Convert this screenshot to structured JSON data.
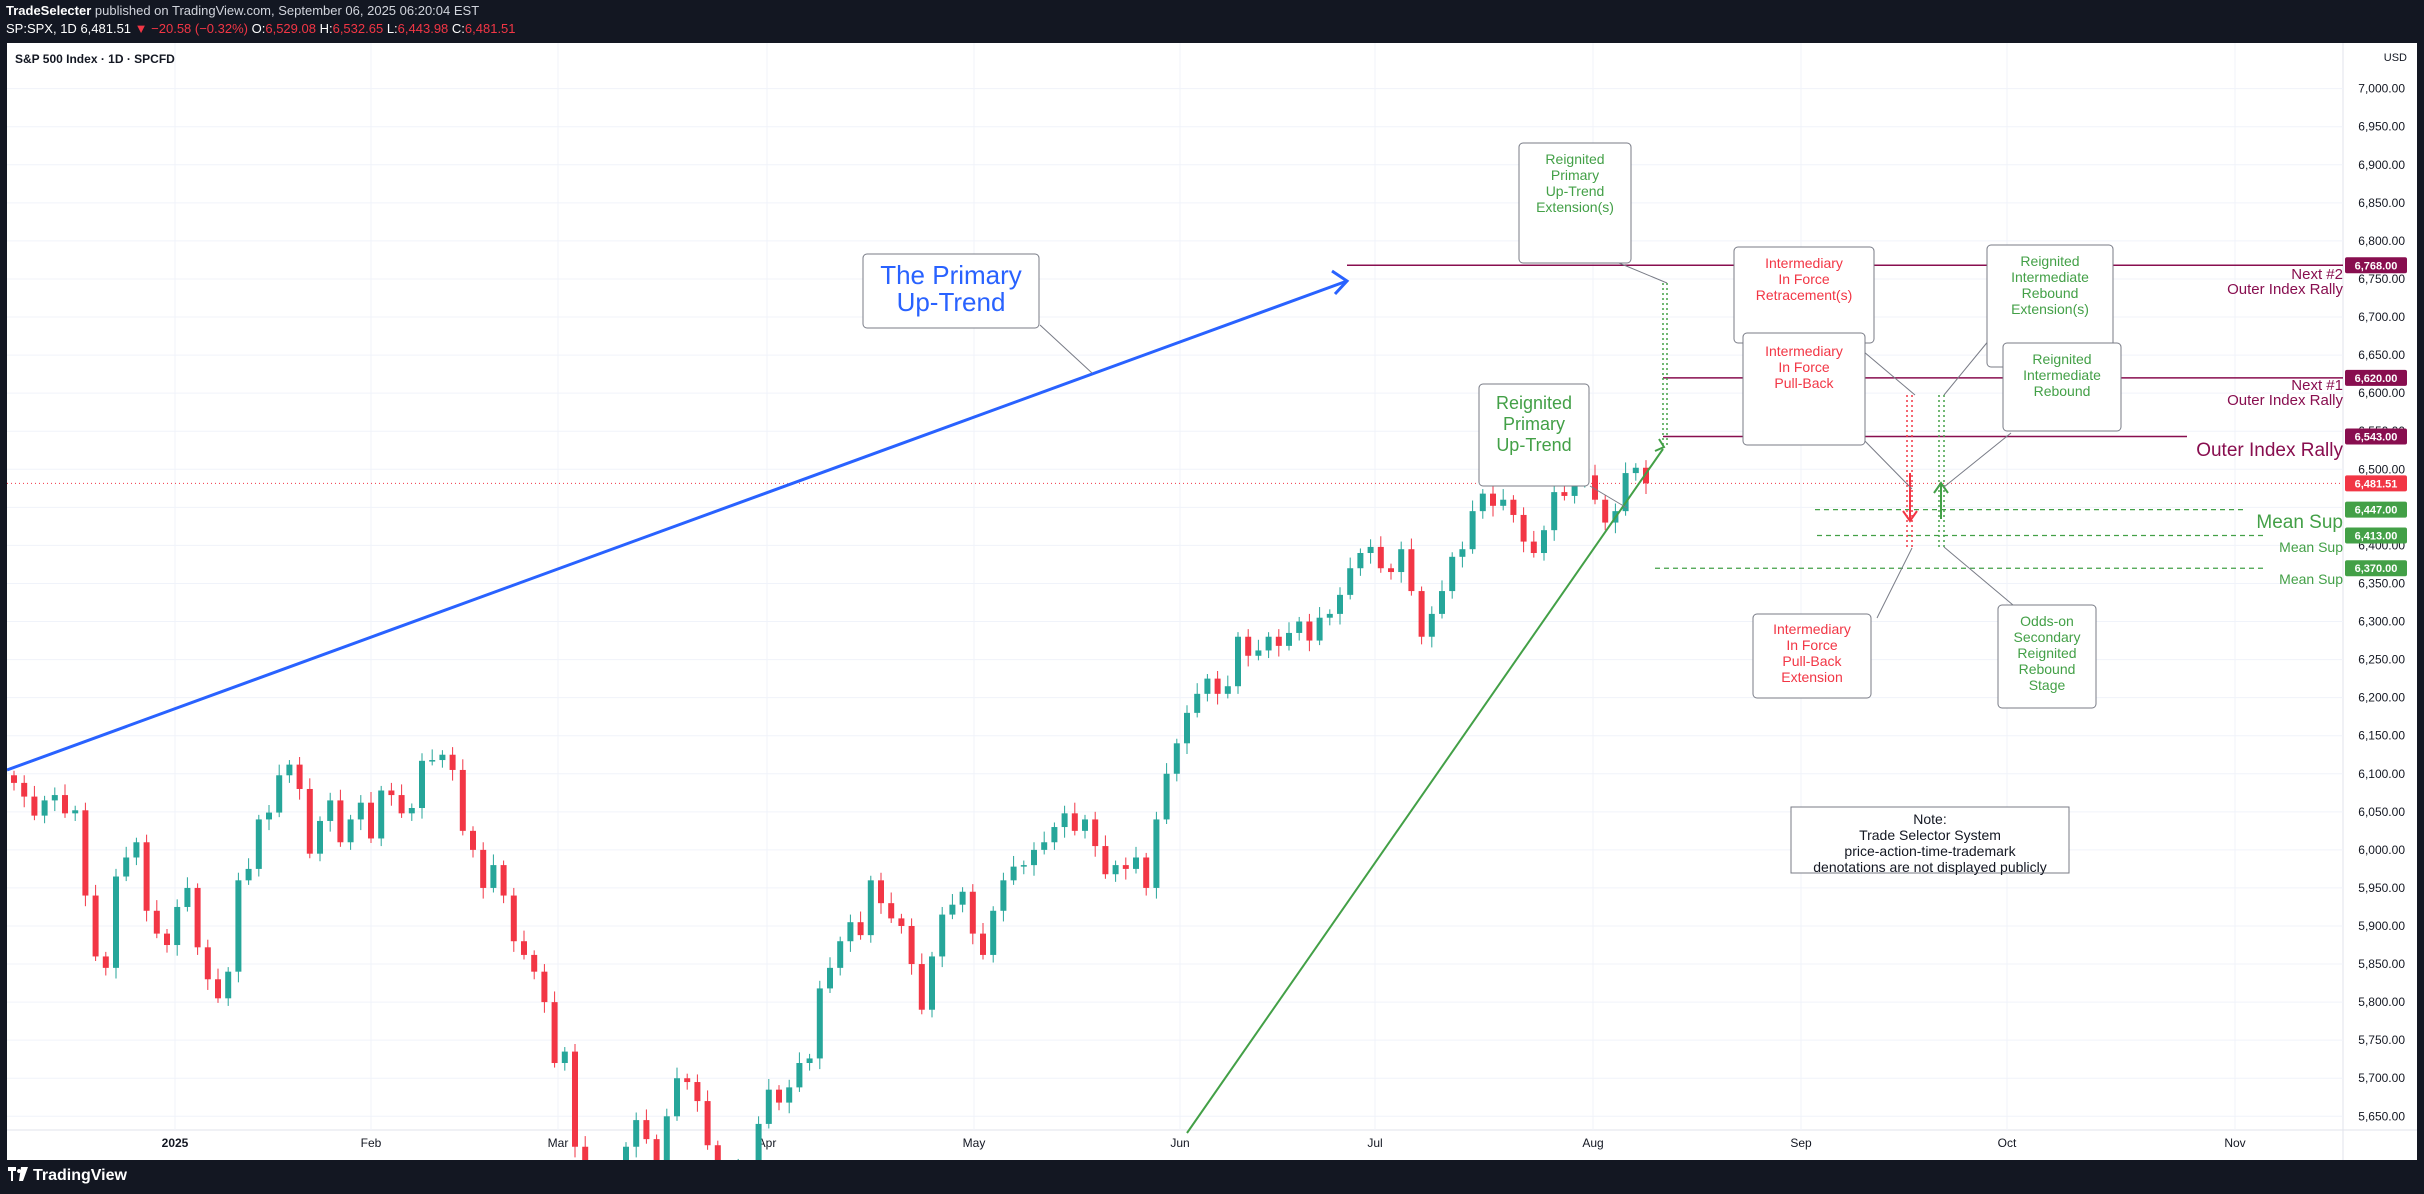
{
  "header": {
    "publisher": "TradeSelecter",
    "published_text": "published on TradingView.com, September 06, 2025 06:20:04 EST",
    "symbol": "SP:SPX, 1D",
    "last": "6,481.51",
    "change": "▼ −20.58 (−0.32%)",
    "o_label": "O:",
    "o": "6,529.08",
    "h_label": "H:",
    "h": "6,532.65",
    "l_label": "L:",
    "l": "6,443.98",
    "c_label": "C:",
    "c": "6,481.51"
  },
  "chart": {
    "title": "S&P 500 Index · 1D · SPCFD",
    "currency": "USD",
    "colors": {
      "up": "#26a69a",
      "down": "#f23645",
      "primary_trend": "#2962ff",
      "green": "#43a047",
      "maroon": "#880e4f",
      "red": "#f23645"
    }
  },
  "chart_data": {
    "type": "candlestick",
    "title": "S&P 500 Index · 1D · SPCFD",
    "x_labels": [
      "2025",
      "Feb",
      "Mar",
      "Apr",
      "May",
      "Jun",
      "Jul",
      "Aug",
      "Sep",
      "Oct",
      "Nov"
    ],
    "y_ticks": [
      "7,000.00",
      "6,950.00",
      "6,900.00",
      "6,850.00",
      "6,800.00",
      "6,750.00",
      "6,700.00",
      "6,650.00",
      "6,600.00",
      "6,550.00",
      "6,500.00",
      "6,450.00",
      "6,400.00",
      "6,350.00",
      "6,300.00",
      "6,250.00",
      "6,200.00",
      "6,150.00",
      "6,100.00",
      "6,050.00",
      "6,000.00",
      "5,950.00",
      "5,900.00",
      "5,850.00",
      "5,800.00",
      "5,750.00",
      "5,700.00",
      "5,650.00"
    ],
    "y_range": [
      5632,
      7060
    ],
    "closes": [
      6088,
      6070,
      6045,
      6065,
      6072,
      6048,
      6052,
      5940,
      5860,
      5845,
      5965,
      5990,
      6010,
      5920,
      5890,
      5875,
      5925,
      5950,
      5872,
      5830,
      5805,
      5840,
      5960,
      5975,
      6040,
      6049,
      6098,
      6112,
      6080,
      5995,
      6038,
      6065,
      6010,
      6040,
      6062,
      6015,
      6078,
      6072,
      6048,
      6055,
      6117,
      6118,
      6125,
      6105,
      6025,
      6000,
      5950,
      5980,
      5940,
      5880,
      5862,
      5840,
      5800,
      5720,
      5735,
      5610,
      5540,
      5500,
      5530,
      5560,
      5610,
      5645,
      5620,
      5560,
      5650,
      5700,
      5695,
      5670,
      5612,
      5520,
      5520,
      5580,
      5580,
      5640,
      5685,
      5668,
      5688,
      5720,
      5726,
      5818,
      5845,
      5880,
      5905,
      5888,
      5960,
      5930,
      5910,
      5900,
      5850,
      5790,
      5860,
      5915,
      5928,
      5945,
      5890,
      5862,
      5920,
      5960,
      5978,
      5980,
      6000,
      6010,
      6030,
      6048,
      6025,
      6040,
      6005,
      5968,
      5980,
      5975,
      5990,
      5950,
      6040,
      6100,
      6140,
      6180,
      6205,
      6225,
      6205,
      6215,
      6280,
      6255,
      6262,
      6280,
      6268,
      6285,
      6300,
      6275,
      6305,
      6310,
      6335,
      6370,
      6390,
      6398,
      6370,
      6365,
      6395,
      6340,
      6280,
      6310,
      6340,
      6385,
      6395,
      6445,
      6468,
      6452,
      6460,
      6440,
      6405,
      6390,
      6420,
      6470,
      6465,
      6490,
      6492,
      6460,
      6430,
      6445,
      6495,
      6502,
      6481.51
    ],
    "price_labels": [
      {
        "name": "Next #2 Outer Index Rally",
        "value": 6768.0,
        "label": "6,768.00"
      },
      {
        "name": "Next #1 Outer Index Rally",
        "value": 6620.0,
        "label": "6,620.00"
      },
      {
        "name": "Outer Index Rally",
        "value": 6543.0,
        "label": "6,543.00"
      },
      {
        "name": "Last",
        "value": 6481.51,
        "label": "6,481.51"
      },
      {
        "name": "Mean Sup",
        "value": 6447.0,
        "label": "6,447.00"
      },
      {
        "name": "Mean Sup",
        "value": 6413.0,
        "label": "6,413.00"
      },
      {
        "name": "Mean Sup",
        "value": 6370.0,
        "label": "6,370.00"
      }
    ]
  },
  "annotations": {
    "primary_uptrend": [
      "The Primary",
      "Up-Trend"
    ],
    "reignited_primary_uptrend": [
      "Reignited",
      "Primary",
      "Up-Trend"
    ],
    "reignited_primary_extension": [
      "Reignited",
      "Primary",
      "Up-Trend",
      "Extension(s)"
    ],
    "intermediary_retracement": [
      "Intermediary",
      "In Force",
      "Retracement(s)"
    ],
    "intermediary_pullback": [
      "Intermediary",
      "In Force",
      "Pull-Back"
    ],
    "intermediary_pullback_ext": [
      "Intermediary",
      "In Force",
      "Pull-Back",
      "Extension"
    ],
    "reignited_rebound_ext": [
      "Reignited",
      "Intermediate",
      "Rebound",
      "Extension(s)"
    ],
    "reignited_rebound": [
      "Reignited",
      "Intermediate",
      "Rebound"
    ],
    "odds_on": [
      "Odds-on",
      "Secondary",
      "Reignited",
      "Rebound",
      "Stage"
    ],
    "note": [
      "Note:",
      "Trade Selector System",
      "price-action-time-trademark",
      "denotations are not displayed publicly"
    ],
    "next2": [
      "Next #2",
      "Outer Index Rally"
    ],
    "next1": [
      "Next #1",
      "Outer Index Rally"
    ],
    "outer_rally": "Outer Index Rally",
    "mean_sup_main": "Mean Sup",
    "mean_sup_2": "Mean Sup",
    "mean_sup_3": "Mean Sup"
  },
  "footer": {
    "brand": "TradingView"
  }
}
